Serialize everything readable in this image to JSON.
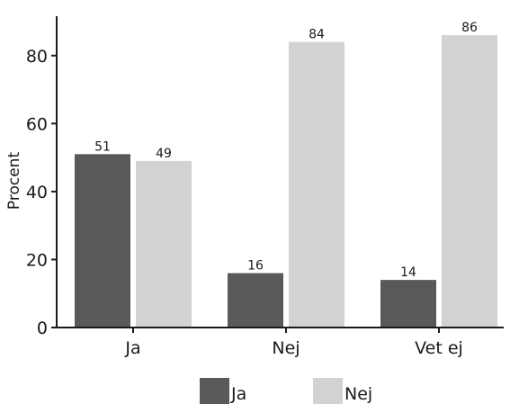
{
  "chart_data": {
    "type": "bar",
    "title": "",
    "xlabel": "",
    "ylabel": "Procent",
    "ylim": [
      0,
      90
    ],
    "yticks": [
      0,
      20,
      40,
      60,
      80
    ],
    "categories": [
      "Ja",
      "Nej",
      "Vet ej"
    ],
    "series": [
      {
        "name": "Ja",
        "color": "#58595b",
        "values": [
          51,
          16,
          14
        ]
      },
      {
        "name": "Nej",
        "color": "#d1d2d4",
        "values": [
          49,
          84,
          86
        ]
      }
    ],
    "grid": false,
    "legend_position": "bottom-center"
  }
}
